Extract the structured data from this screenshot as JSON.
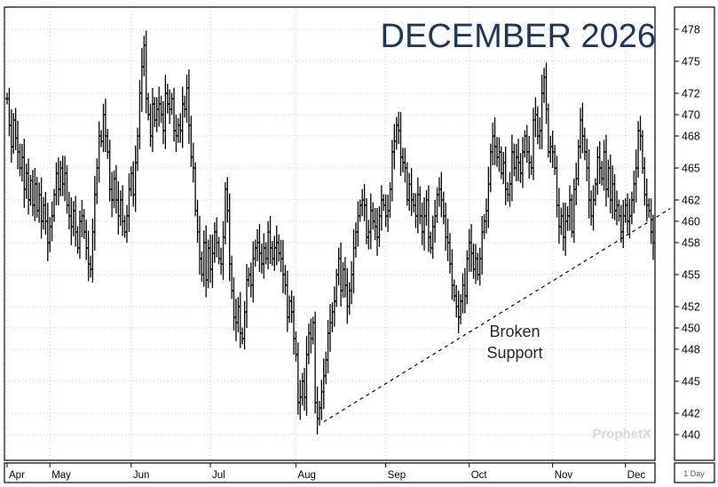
{
  "chart_data": {
    "type": "ohlc",
    "title": "DECEMBER 2026",
    "xlabel": "",
    "ylabel": "",
    "period": "1 Day",
    "watermark": "ProphetX",
    "ylim": [
      438,
      480
    ],
    "y_ticks": [
      440,
      442,
      445,
      448,
      450,
      452,
      455,
      458,
      460,
      462,
      465,
      468,
      470,
      472,
      475,
      478
    ],
    "x_ticks": [
      {
        "label": "Apr",
        "index": 0
      },
      {
        "label": "May",
        "index": 20
      },
      {
        "label": "Jun",
        "index": 58
      },
      {
        "label": "Jul",
        "index": 95
      },
      {
        "label": "Aug",
        "index": 135
      },
      {
        "label": "Sep",
        "index": 177
      },
      {
        "label": "Oct",
        "index": 216
      },
      {
        "label": "Nov",
        "index": 255
      },
      {
        "label": "Dec",
        "index": 289
      }
    ],
    "trendline": {
      "label_line1": "Broken",
      "label_line2": "Support",
      "from": [
        148,
        441.2
      ],
      "to": [
        310,
        461.2
      ]
    },
    "closes": [
      471.5,
      469.0,
      467.0,
      469.5,
      467.8,
      466.5,
      465.0,
      466.0,
      463.0,
      464.5,
      462.0,
      463.8,
      461.5,
      463.5,
      461.0,
      462.5,
      460.0,
      461.5,
      460.0,
      458.0,
      459.5,
      460.5,
      462.5,
      464.5,
      463.0,
      465.0,
      463.5,
      464.5,
      461.5,
      460.5,
      459.5,
      461.0,
      459.0,
      457.5,
      460.0,
      460.5,
      459.0,
      457.5,
      456.0,
      455.5,
      459.0,
      462.5,
      465.0,
      468.0,
      467.5,
      470.0,
      468.0,
      466.5,
      463.0,
      462.0,
      464.0,
      462.0,
      460.5,
      462.0,
      460.0,
      459.0,
      460.5,
      463.0,
      464.5,
      462.5,
      465.5,
      468.0,
      472.0,
      474.5,
      476.5,
      471.5,
      470.0,
      468.0,
      471.0,
      469.5,
      470.5,
      471.0,
      470.0,
      468.5,
      472.0,
      471.0,
      470.5,
      471.5,
      468.5,
      468.0,
      469.0,
      468.5,
      471.0,
      470.5,
      472.5,
      469.0,
      466.0,
      465.0,
      461.0,
      459.0,
      456.5,
      455.0,
      458.0,
      454.5,
      457.5,
      455.5,
      457.0,
      459.0,
      458.0,
      456.5,
      456.0,
      458.5,
      463.0,
      461.0,
      456.0,
      453.5,
      451.0,
      450.5,
      452.0,
      449.5,
      449.0,
      451.5,
      454.5,
      455.0,
      454.0,
      456.5,
      457.5,
      458.0,
      457.0,
      456.0,
      457.5,
      456.5,
      459.0,
      457.5,
      456.5,
      457.5,
      458.0,
      457.0,
      456.5,
      455.0,
      454.0,
      451.0,
      452.5,
      451.5,
      449.0,
      447.5,
      443.0,
      443.5,
      445.0,
      443.5,
      447.5,
      449.5,
      449.0,
      450.5,
      443.0,
      441.5,
      442.5,
      444.0,
      445.5,
      447.0,
      449.5,
      450.5,
      451.5,
      452.5,
      455.0,
      456.5,
      453.5,
      455.5,
      454.0,
      452.0,
      453.5,
      455.0,
      457.5,
      459.0,
      460.5,
      461.5,
      462.0,
      461.5,
      458.5,
      459.0,
      461.0,
      460.0,
      459.5,
      458.5,
      460.5,
      462.0,
      461.5,
      460.5,
      461.0,
      463.0,
      466.5,
      467.5,
      469.0,
      468.5,
      466.0,
      465.5,
      465.0,
      462.0,
      463.5,
      462.0,
      461.5,
      460.5,
      462.5,
      460.5,
      459.0,
      460.5,
      462.0,
      458.5,
      457.5,
      459.5,
      460.5,
      462.5,
      463.0,
      462.0,
      460.5,
      458.5,
      458.0,
      456.0,
      454.0,
      453.0,
      452.0,
      451.0,
      452.5,
      454.0,
      453.0,
      456.5,
      458.0,
      457.0,
      455.5,
      456.5,
      455.0,
      456.5,
      459.0,
      460.0,
      461.0,
      463.5,
      466.5,
      468.0,
      467.0,
      466.0,
      466.5,
      464.5,
      465.5,
      463.0,
      462.5,
      463.5,
      466.5,
      465.0,
      466.0,
      465.5,
      464.5,
      466.5,
      468.0,
      466.5,
      465.5,
      465.0,
      469.5,
      470.0,
      468.0,
      468.5,
      472.0,
      473.5,
      470.5,
      466.5,
      467.0,
      466.5,
      465.0,
      461.5,
      459.5,
      460.5,
      458.5,
      460.0,
      460.5,
      462.0,
      459.0,
      463.0,
      464.0,
      467.0,
      469.5,
      468.0,
      466.5,
      465.0,
      462.0,
      460.5,
      462.0,
      463.5,
      466.0,
      465.0,
      464.0,
      466.5,
      463.0,
      465.0,
      462.0,
      463.5,
      461.0,
      461.5,
      460.5,
      459.0,
      460.5,
      461.5,
      460.0,
      460.5,
      462.0,
      463.5,
      465.0,
      468.5,
      468.0,
      465.0,
      462.5,
      461.5,
      461.0,
      459.0,
      458.0
    ]
  }
}
